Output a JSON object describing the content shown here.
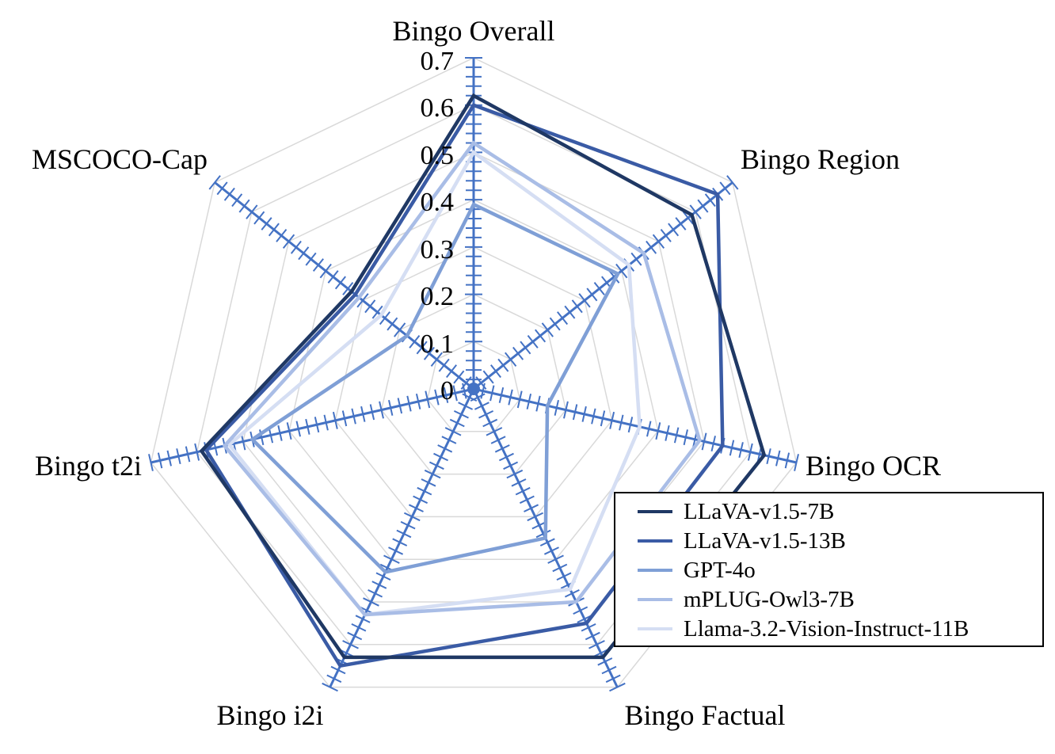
{
  "chart_data": {
    "type": "radar",
    "title": "",
    "categories": [
      "Bingo Overall",
      "Bingo Region",
      "Bingo OCR",
      "Bingo Factual",
      "Bingo i2i",
      "Bingo t2i",
      "MSCOCO-Cap"
    ],
    "rlim": [
      0,
      0.7
    ],
    "rticks": [
      "0",
      "0.1",
      "0.2",
      "0.3",
      "0.4",
      "0.5",
      "0.6",
      "0.7"
    ],
    "grid": true,
    "legend": "bottom-right",
    "series": [
      {
        "name": "LLaVA-v1.5-7B",
        "color": "#1f3864",
        "values": [
          0.62,
          0.59,
          0.63,
          0.63,
          0.63,
          0.59,
          0.33
        ]
      },
      {
        "name": "LLaVA-v1.5-13B",
        "color": "#3a5ba5",
        "values": [
          0.6,
          0.66,
          0.54,
          0.55,
          0.65,
          0.58,
          0.32
        ]
      },
      {
        "name": "GPT-4o",
        "color": "#7f9fd6",
        "values": [
          0.39,
          0.39,
          0.16,
          0.35,
          0.43,
          0.48,
          0.18
        ]
      },
      {
        "name": "mPLUG-Owl3-7B",
        "color": "#a9bde6",
        "values": [
          0.52,
          0.46,
          0.49,
          0.5,
          0.53,
          0.54,
          0.31
        ]
      },
      {
        "name": "Llama-3.2-Vision-Instruct-11B",
        "color": "#d5def3",
        "values": [
          0.5,
          0.42,
          0.36,
          0.47,
          0.53,
          0.53,
          0.25
        ]
      }
    ]
  },
  "colors": {
    "axis": "#4472c4",
    "grid": "#d9d9d9"
  }
}
